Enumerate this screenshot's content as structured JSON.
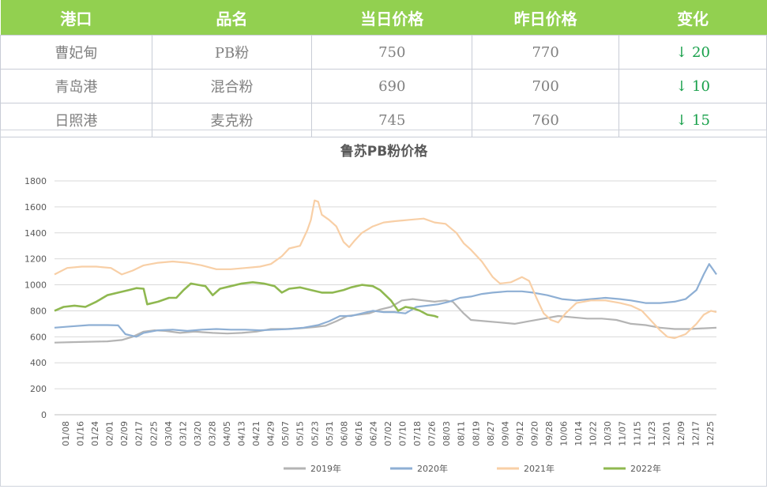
{
  "table": {
    "headers": [
      "港口",
      "品名",
      "当日价格",
      "昨日价格",
      "变化"
    ],
    "rows": [
      {
        "port": "曹妃甸",
        "product": "PB粉",
        "today": "750",
        "yesterday": "770",
        "change": "↓ 20"
      },
      {
        "port": "青岛港",
        "product": "混合粉",
        "today": "690",
        "yesterday": "700",
        "change": "↓ 10"
      },
      {
        "port": "日照港",
        "product": "麦克粉",
        "today": "745",
        "yesterday": "760",
        "change": "↓ 15"
      }
    ],
    "colors": {
      "header_bg": "#92d050",
      "change_text": "#17a04a"
    }
  },
  "chart_data": {
    "type": "line",
    "title": "鲁苏PB粉价格",
    "ylim": [
      0,
      1800
    ],
    "yticks": [
      0,
      200,
      400,
      600,
      800,
      1000,
      1200,
      1400,
      1600,
      1800
    ],
    "x_tick_labels": [
      "01/08",
      "01/16",
      "01/24",
      "02/01",
      "02/09",
      "02/17",
      "02/25",
      "03/04",
      "03/12",
      "03/20",
      "03/28",
      "04/05",
      "04/13",
      "04/21",
      "04/29",
      "05/07",
      "05/15",
      "05/23",
      "05/31",
      "06/08",
      "06/16",
      "06/24",
      "07/02",
      "07/10",
      "07/18",
      "07/26",
      "08/03",
      "08/11",
      "08/19",
      "08/27",
      "09/04",
      "09/12",
      "09/20",
      "09/28",
      "10/06",
      "10/14",
      "10/22",
      "10/30",
      "11/07",
      "11/15",
      "11/23",
      "12/01",
      "12/09",
      "12/17",
      "12/25"
    ],
    "x_day_range": [
      1,
      365
    ],
    "grid": "horizontal",
    "legend_position": "bottom",
    "series": [
      {
        "name": "2019年",
        "color": "#b4b4b4",
        "points": [
          [
            1,
            555
          ],
          [
            15,
            560
          ],
          [
            30,
            565
          ],
          [
            38,
            575
          ],
          [
            44,
            600
          ],
          [
            50,
            640
          ],
          [
            56,
            650
          ],
          [
            62,
            645
          ],
          [
            70,
            630
          ],
          [
            78,
            640
          ],
          [
            88,
            630
          ],
          [
            96,
            625
          ],
          [
            104,
            630
          ],
          [
            112,
            640
          ],
          [
            120,
            660
          ],
          [
            128,
            660
          ],
          [
            136,
            665
          ],
          [
            144,
            675
          ],
          [
            150,
            685
          ],
          [
            156,
            720
          ],
          [
            162,
            760
          ],
          [
            168,
            770
          ],
          [
            174,
            780
          ],
          [
            180,
            810
          ],
          [
            186,
            830
          ],
          [
            192,
            880
          ],
          [
            198,
            890
          ],
          [
            204,
            880
          ],
          [
            210,
            870
          ],
          [
            216,
            880
          ],
          [
            220,
            870
          ],
          [
            226,
            780
          ],
          [
            230,
            730
          ],
          [
            238,
            720
          ],
          [
            246,
            710
          ],
          [
            254,
            700
          ],
          [
            262,
            720
          ],
          [
            270,
            740
          ],
          [
            278,
            760
          ],
          [
            286,
            750
          ],
          [
            294,
            740
          ],
          [
            302,
            740
          ],
          [
            310,
            730
          ],
          [
            318,
            700
          ],
          [
            326,
            690
          ],
          [
            334,
            670
          ],
          [
            342,
            660
          ],
          [
            350,
            660
          ],
          [
            358,
            665
          ],
          [
            365,
            670
          ]
        ]
      },
      {
        "name": "2020年",
        "color": "#8eafd4",
        "points": [
          [
            1,
            670
          ],
          [
            10,
            680
          ],
          [
            20,
            690
          ],
          [
            30,
            690
          ],
          [
            36,
            688
          ],
          [
            40,
            620
          ],
          [
            46,
            600
          ],
          [
            50,
            630
          ],
          [
            58,
            650
          ],
          [
            66,
            655
          ],
          [
            74,
            645
          ],
          [
            82,
            655
          ],
          [
            90,
            660
          ],
          [
            98,
            655
          ],
          [
            106,
            655
          ],
          [
            114,
            650
          ],
          [
            122,
            655
          ],
          [
            130,
            660
          ],
          [
            138,
            670
          ],
          [
            146,
            690
          ],
          [
            152,
            720
          ],
          [
            158,
            760
          ],
          [
            164,
            760
          ],
          [
            170,
            780
          ],
          [
            176,
            800
          ],
          [
            182,
            790
          ],
          [
            188,
            790
          ],
          [
            194,
            780
          ],
          [
            200,
            830
          ],
          [
            206,
            840
          ],
          [
            212,
            850
          ],
          [
            218,
            870
          ],
          [
            224,
            900
          ],
          [
            230,
            910
          ],
          [
            236,
            930
          ],
          [
            242,
            940
          ],
          [
            250,
            950
          ],
          [
            258,
            950
          ],
          [
            264,
            940
          ],
          [
            272,
            920
          ],
          [
            280,
            890
          ],
          [
            288,
            880
          ],
          [
            296,
            890
          ],
          [
            304,
            900
          ],
          [
            312,
            890
          ],
          [
            318,
            880
          ],
          [
            326,
            860
          ],
          [
            334,
            860
          ],
          [
            342,
            870
          ],
          [
            348,
            890
          ],
          [
            354,
            960
          ],
          [
            358,
            1080
          ],
          [
            361,
            1160
          ],
          [
            363,
            1120
          ],
          [
            365,
            1080
          ]
        ]
      },
      {
        "name": "2021年",
        "color": "#f8cfa6",
        "points": [
          [
            1,
            1080
          ],
          [
            8,
            1130
          ],
          [
            16,
            1140
          ],
          [
            24,
            1140
          ],
          [
            32,
            1130
          ],
          [
            38,
            1080
          ],
          [
            44,
            1110
          ],
          [
            50,
            1150
          ],
          [
            58,
            1170
          ],
          [
            66,
            1180
          ],
          [
            74,
            1170
          ],
          [
            82,
            1150
          ],
          [
            90,
            1120
          ],
          [
            98,
            1120
          ],
          [
            106,
            1130
          ],
          [
            114,
            1140
          ],
          [
            120,
            1160
          ],
          [
            126,
            1220
          ],
          [
            130,
            1280
          ],
          [
            136,
            1300
          ],
          [
            140,
            1420
          ],
          [
            142,
            1500
          ],
          [
            144,
            1650
          ],
          [
            146,
            1640
          ],
          [
            148,
            1540
          ],
          [
            152,
            1500
          ],
          [
            156,
            1450
          ],
          [
            160,
            1330
          ],
          [
            163,
            1290
          ],
          [
            166,
            1340
          ],
          [
            170,
            1400
          ],
          [
            176,
            1450
          ],
          [
            182,
            1480
          ],
          [
            188,
            1490
          ],
          [
            196,
            1500
          ],
          [
            204,
            1510
          ],
          [
            210,
            1480
          ],
          [
            216,
            1470
          ],
          [
            222,
            1400
          ],
          [
            226,
            1320
          ],
          [
            230,
            1270
          ],
          [
            236,
            1180
          ],
          [
            242,
            1060
          ],
          [
            246,
            1010
          ],
          [
            252,
            1020
          ],
          [
            258,
            1060
          ],
          [
            262,
            1030
          ],
          [
            266,
            900
          ],
          [
            270,
            780
          ],
          [
            274,
            730
          ],
          [
            278,
            710
          ],
          [
            282,
            780
          ],
          [
            288,
            860
          ],
          [
            296,
            880
          ],
          [
            304,
            880
          ],
          [
            312,
            860
          ],
          [
            318,
            840
          ],
          [
            324,
            800
          ],
          [
            328,
            740
          ],
          [
            334,
            650
          ],
          [
            338,
            600
          ],
          [
            342,
            590
          ],
          [
            348,
            620
          ],
          [
            354,
            700
          ],
          [
            358,
            770
          ],
          [
            362,
            800
          ],
          [
            365,
            790
          ]
        ]
      },
      {
        "name": "2022年",
        "color": "#8fb850",
        "points": [
          [
            1,
            800
          ],
          [
            6,
            830
          ],
          [
            12,
            840
          ],
          [
            18,
            830
          ],
          [
            24,
            870
          ],
          [
            30,
            920
          ],
          [
            36,
            940
          ],
          [
            42,
            960
          ],
          [
            46,
            975
          ],
          [
            50,
            970
          ],
          [
            52,
            850
          ],
          [
            58,
            870
          ],
          [
            64,
            900
          ],
          [
            68,
            900
          ],
          [
            72,
            960
          ],
          [
            76,
            1010
          ],
          [
            80,
            1000
          ],
          [
            84,
            990
          ],
          [
            88,
            920
          ],
          [
            92,
            970
          ],
          [
            98,
            990
          ],
          [
            104,
            1010
          ],
          [
            110,
            1020
          ],
          [
            116,
            1010
          ],
          [
            122,
            990
          ],
          [
            126,
            940
          ],
          [
            130,
            970
          ],
          [
            136,
            980
          ],
          [
            142,
            960
          ],
          [
            148,
            940
          ],
          [
            154,
            940
          ],
          [
            160,
            960
          ],
          [
            164,
            980
          ],
          [
            170,
            1000
          ],
          [
            176,
            990
          ],
          [
            180,
            960
          ],
          [
            186,
            880
          ],
          [
            190,
            800
          ],
          [
            194,
            830
          ],
          [
            198,
            820
          ],
          [
            202,
            800
          ],
          [
            206,
            770
          ],
          [
            210,
            760
          ],
          [
            212,
            750
          ]
        ]
      }
    ]
  }
}
